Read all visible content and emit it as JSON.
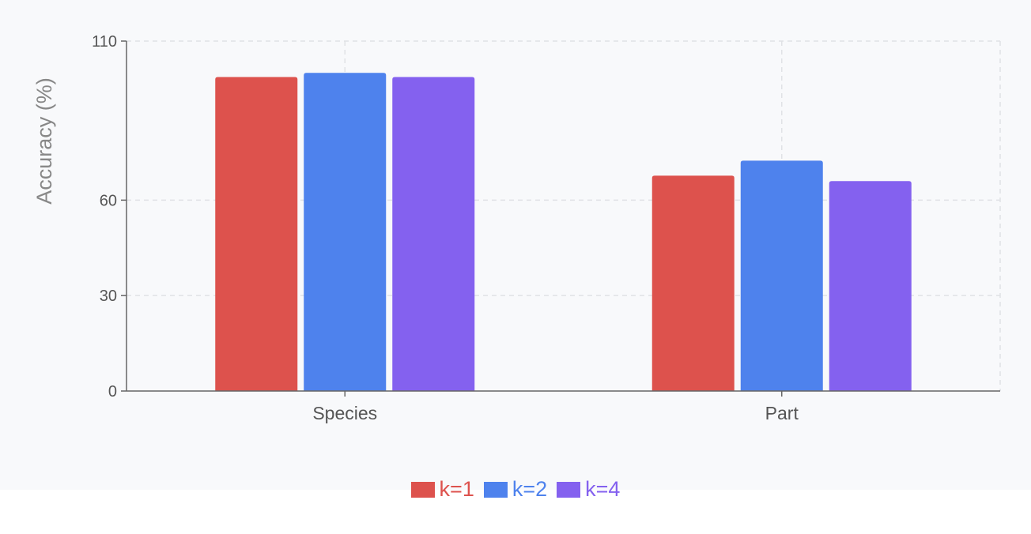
{
  "chart_data": {
    "type": "bar",
    "title": "",
    "xlabel": "",
    "ylabel": "Accuracy (%)",
    "ylim": [
      0,
      110
    ],
    "yticks": [
      0,
      30,
      60,
      110
    ],
    "grid": true,
    "legend_position": "bottom",
    "categories": [
      "Species",
      "Part"
    ],
    "series": [
      {
        "name": "k=1",
        "color": "#dd524d",
        "values": [
          98.7,
          67.7
        ]
      },
      {
        "name": "k=2",
        "color": "#4e82ed",
        "values": [
          100.0,
          72.4
        ]
      },
      {
        "name": "k=4",
        "color": "#8461ef",
        "values": [
          98.7,
          66.0
        ]
      }
    ]
  }
}
